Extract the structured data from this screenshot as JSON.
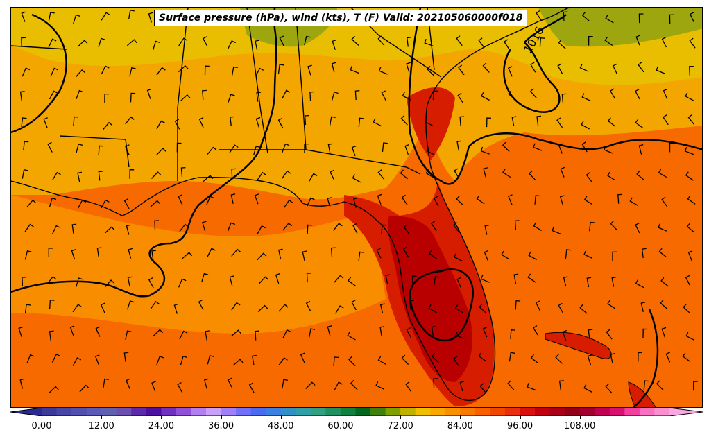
{
  "title": "Surface pressure (hPa), wind (kts), T (F) Valid: 202105060000f018",
  "isobar_labels": [
    "1016"
  ],
  "colorbar": {
    "tick_labels": [
      "0.00",
      "12.00",
      "24.00",
      "36.00",
      "48.00",
      "60.00",
      "72.00",
      "84.00",
      "96.00",
      "108.00"
    ],
    "colors": [
      "#3a3a9a",
      "#4646a8",
      "#5050b0",
      "#5a5ab8",
      "#6060b0",
      "#6a4fb0",
      "#5a2aa8",
      "#4a10a0",
      "#7030c0",
      "#9050d8",
      "#b080f0",
      "#c8a0f8",
      "#a080f8",
      "#7070f8",
      "#4a6af0",
      "#3a80e0",
      "#3090c8",
      "#30a0a8",
      "#30a080",
      "#209060",
      "#108040",
      "#006820",
      "#408010",
      "#80a000",
      "#c0b000",
      "#f0c000",
      "#f8a800",
      "#f89000",
      "#f87800",
      "#f86000",
      "#f04800",
      "#e83010",
      "#d81010",
      "#c00010",
      "#a80018",
      "#900018",
      "#a00030",
      "#c00050",
      "#d81070",
      "#f040a0",
      "#f870c0",
      "#f890d0"
    ]
  },
  "legend_colors": {
    "ocean_warm": "#f76a00",
    "ocean_mid": "#f98d00",
    "land_mild": "#f3a600",
    "land_cool": "#e9bd00",
    "highland": "#9da60f",
    "hot_core": "#b90000",
    "hot": "#d61d00"
  }
}
